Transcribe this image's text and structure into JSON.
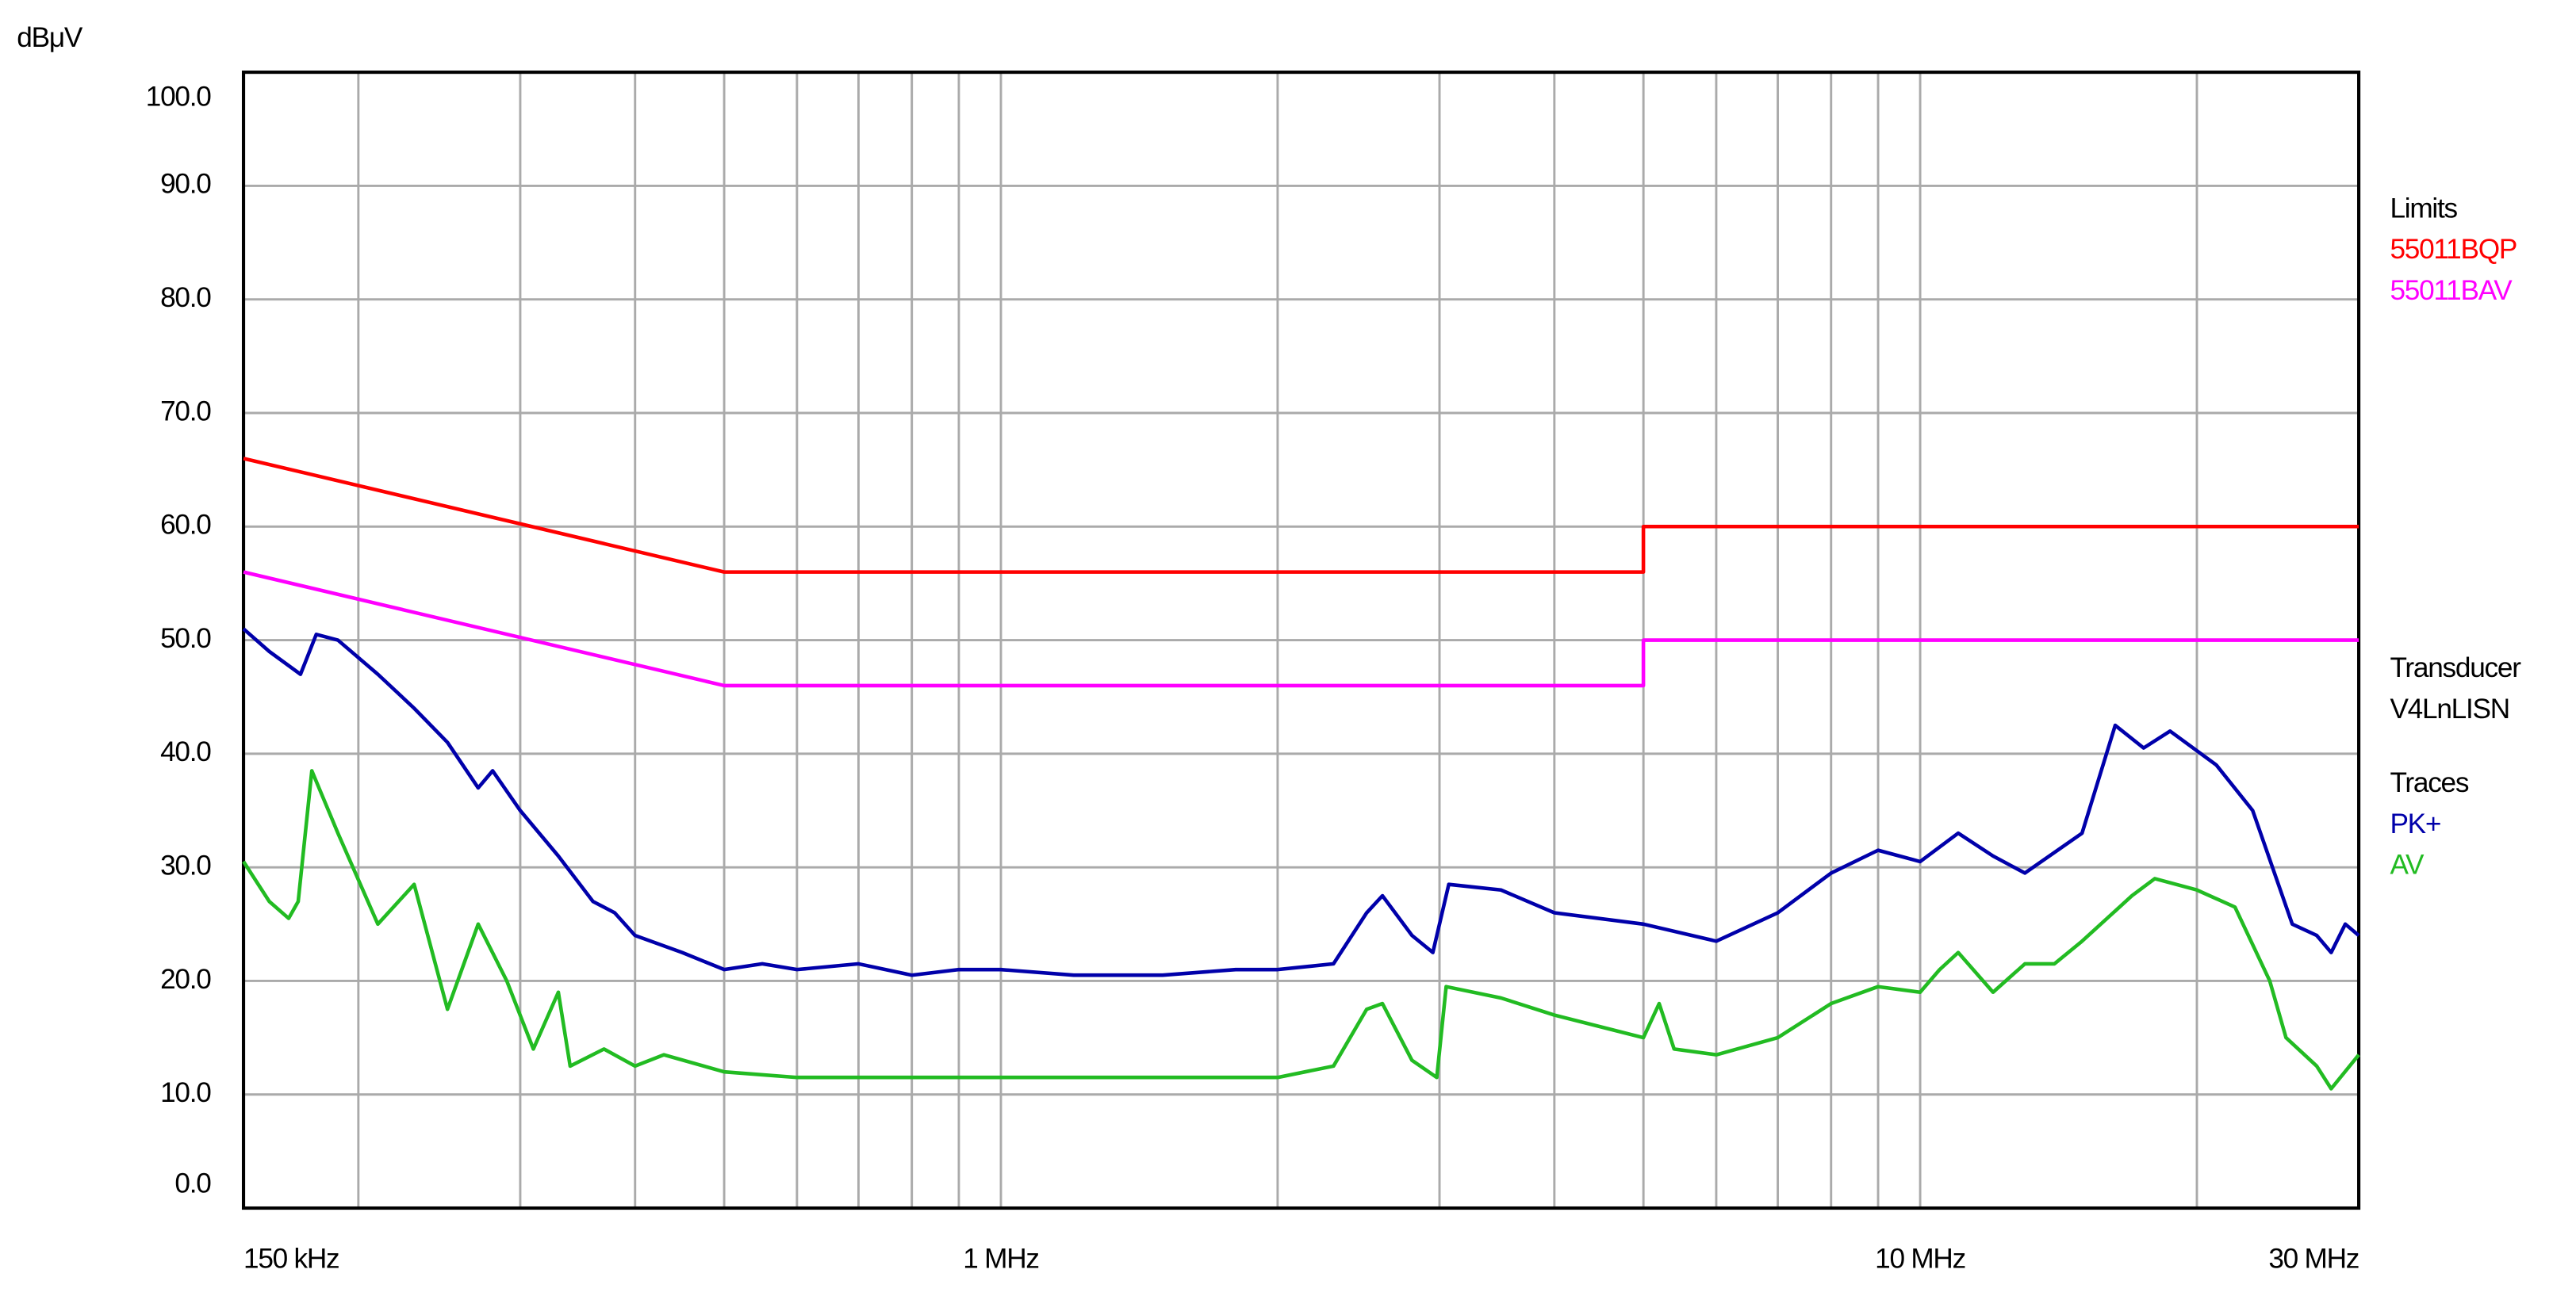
{
  "chart_data": {
    "type": "line",
    "ylabel": "dBμV",
    "xlog": true,
    "grid": true,
    "xlim": [
      0.15,
      30
    ],
    "ylim": [
      0,
      100
    ],
    "xticks": [
      {
        "value": 0.15,
        "label": "150 kHz"
      },
      {
        "value": 1,
        "label": "1 MHz"
      },
      {
        "value": 10,
        "label": "10 MHz"
      },
      {
        "value": 30,
        "label": "30 MHz"
      }
    ],
    "xgrid_minor": [
      0.2,
      0.3,
      0.4,
      0.5,
      0.6,
      0.7,
      0.8,
      0.9,
      2,
      3,
      4,
      5,
      6,
      7,
      8,
      9,
      20
    ],
    "yticks": [
      {
        "value": 0,
        "label": "0.0"
      },
      {
        "value": 10,
        "label": "10.0"
      },
      {
        "value": 20,
        "label": "20.0"
      },
      {
        "value": 30,
        "label": "30.0"
      },
      {
        "value": 40,
        "label": "40.0"
      },
      {
        "value": 50,
        "label": "50.0"
      },
      {
        "value": 60,
        "label": "60.0"
      },
      {
        "value": 70,
        "label": "70.0"
      },
      {
        "value": 80,
        "label": "80.0"
      },
      {
        "value": 90,
        "label": "90.0"
      },
      {
        "value": 100,
        "label": "100.0"
      }
    ],
    "legend": {
      "limits_title": "Limits",
      "transducer_title": "Transducer",
      "transducer": "V4LnLISN",
      "traces_title": "Traces"
    },
    "series": [
      {
        "name": "55011BQP",
        "group": "limits",
        "color": "#ff0000",
        "x": [
          0.15,
          0.5,
          5,
          5,
          30
        ],
        "values": [
          66,
          56,
          56,
          60,
          60
        ]
      },
      {
        "name": "55011BAV",
        "group": "limits",
        "color": "#ff00ff",
        "x": [
          0.15,
          0.5,
          5,
          5,
          30
        ],
        "values": [
          56,
          46,
          46,
          50,
          50
        ]
      },
      {
        "name": "PK+",
        "group": "traces",
        "color": "#0000aa",
        "x": [
          0.15,
          0.16,
          0.173,
          0.18,
          0.19,
          0.21,
          0.23,
          0.25,
          0.27,
          0.28,
          0.3,
          0.33,
          0.36,
          0.38,
          0.4,
          0.45,
          0.5,
          0.55,
          0.6,
          0.7,
          0.8,
          0.9,
          1,
          1.2,
          1.5,
          1.8,
          2,
          2.3,
          2.5,
          2.6,
          2.8,
          2.95,
          3.07,
          3.5,
          4,
          5,
          6,
          7,
          8,
          9,
          10,
          11,
          12,
          13,
          15,
          16.3,
          17.5,
          18.7,
          21,
          23,
          25.4,
          27,
          28,
          29,
          30
        ],
        "values": [
          51,
          49,
          47,
          50.5,
          50,
          47,
          44,
          41,
          37,
          38.5,
          35,
          31,
          27,
          26,
          24,
          22.5,
          21,
          21.5,
          21,
          21.5,
          20.5,
          21,
          21,
          20.5,
          20.5,
          21,
          21,
          21.5,
          26,
          27.5,
          24,
          22.5,
          28.5,
          28,
          26,
          25,
          23.5,
          26,
          29.5,
          31.5,
          30.5,
          33,
          31,
          29.5,
          33,
          42.5,
          40.5,
          42,
          39,
          35,
          25,
          24,
          22.5,
          25,
          24
        ]
      },
      {
        "name": "AV",
        "group": "traces",
        "color": "#22bb22",
        "x": [
          0.15,
          0.16,
          0.168,
          0.172,
          0.178,
          0.19,
          0.21,
          0.23,
          0.25,
          0.27,
          0.29,
          0.31,
          0.33,
          0.34,
          0.37,
          0.4,
          0.43,
          0.5,
          0.6,
          0.8,
          1,
          1.5,
          2,
          2.3,
          2.5,
          2.6,
          2.8,
          2.98,
          3.05,
          3.5,
          4,
          5,
          5.2,
          5.4,
          6,
          7,
          8,
          9,
          10,
          10.5,
          11,
          12,
          13,
          14,
          15,
          17,
          18,
          20,
          22,
          24,
          25,
          27,
          28,
          30
        ],
        "values": [
          30.5,
          27,
          25.5,
          27,
          38.5,
          33,
          25,
          28.5,
          17.5,
          25,
          20,
          14,
          19,
          12.5,
          14,
          12.5,
          13.5,
          12,
          11.5,
          11.5,
          11.5,
          11.5,
          11.5,
          12.5,
          17.5,
          18,
          13,
          11.5,
          19.5,
          18.5,
          17,
          15,
          18,
          14,
          13.5,
          15,
          18,
          19.5,
          19,
          21,
          22.5,
          19,
          21.5,
          21.5,
          23.5,
          27.5,
          29,
          28,
          26.5,
          20,
          15,
          12.5,
          10.5,
          13.5
        ]
      }
    ]
  }
}
